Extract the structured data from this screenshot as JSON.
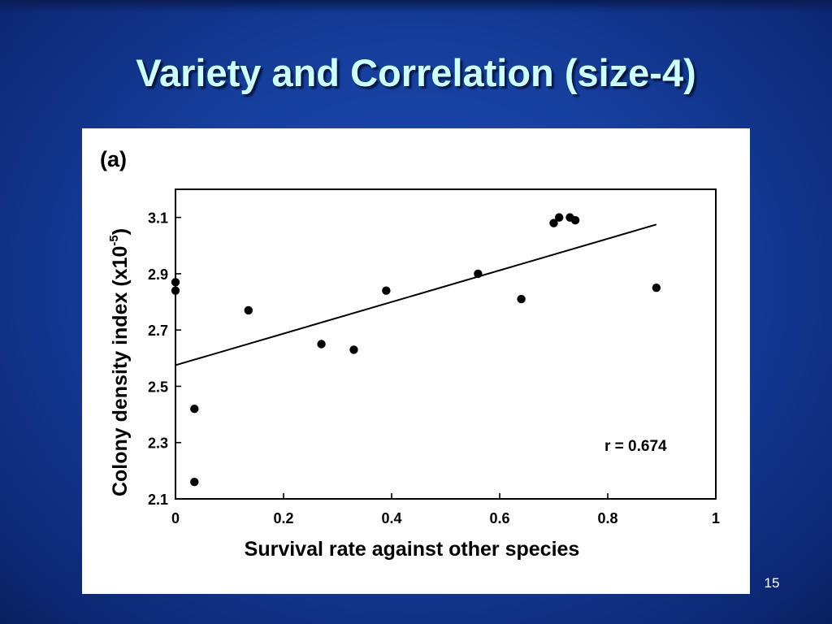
{
  "slide": {
    "title": "Variety and Correlation (size-4)",
    "page_number": "15"
  },
  "chart_data": {
    "type": "scatter",
    "panel_label": "(a)",
    "xlabel": "Survival rate against other species",
    "ylabel_main": "Colony density index (x10",
    "ylabel_exp": "-5",
    "ylabel_close": ")",
    "annotation": "r = 0.674",
    "xlim": [
      0,
      1
    ],
    "ylim": [
      2.1,
      3.2
    ],
    "xticks": [
      0,
      0.2,
      0.4,
      0.6,
      0.8,
      1
    ],
    "xtick_labels": [
      "0",
      "0.2",
      "0.4",
      "0.6",
      "0.8",
      "1"
    ],
    "yticks": [
      2.1,
      2.3,
      2.5,
      2.7,
      2.9,
      3.1
    ],
    "ytick_labels": [
      "2.1",
      "2.3",
      "2.5",
      "2.7",
      "2.9",
      "3.1"
    ],
    "points": [
      {
        "x": 0.0,
        "y": 2.87
      },
      {
        "x": 0.0,
        "y": 2.84
      },
      {
        "x": 0.035,
        "y": 2.42
      },
      {
        "x": 0.035,
        "y": 2.16
      },
      {
        "x": 0.135,
        "y": 2.77
      },
      {
        "x": 0.27,
        "y": 2.65
      },
      {
        "x": 0.33,
        "y": 2.63
      },
      {
        "x": 0.39,
        "y": 2.84
      },
      {
        "x": 0.56,
        "y": 2.9
      },
      {
        "x": 0.64,
        "y": 2.81
      },
      {
        "x": 0.7,
        "y": 3.08
      },
      {
        "x": 0.71,
        "y": 3.1
      },
      {
        "x": 0.73,
        "y": 3.1
      },
      {
        "x": 0.74,
        "y": 3.09
      },
      {
        "x": 0.89,
        "y": 2.85
      }
    ],
    "fit_line": {
      "x": [
        0.0,
        0.89
      ],
      "y": [
        2.575,
        3.075
      ]
    },
    "grid": false
  }
}
